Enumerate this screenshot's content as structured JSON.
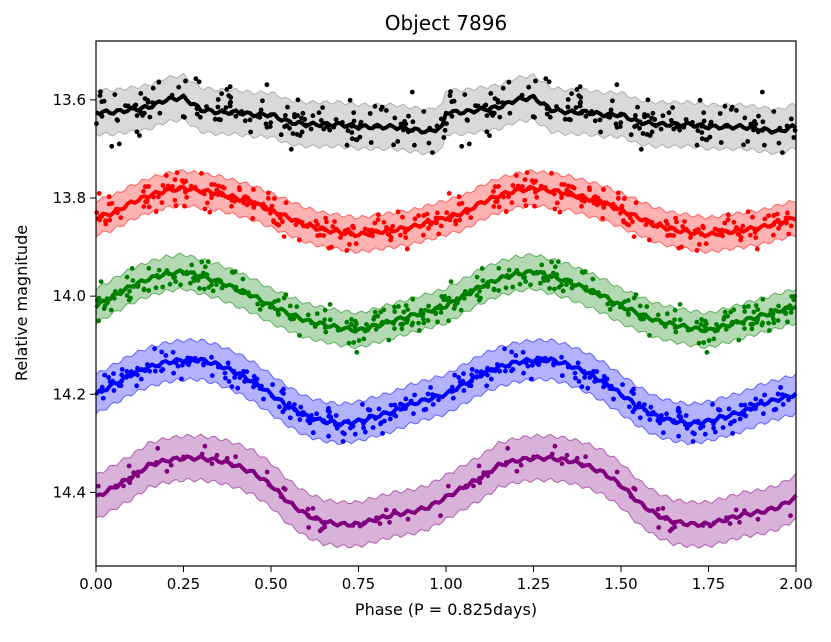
{
  "chart_data": {
    "type": "scatter",
    "title": "Object 7896",
    "xlabel": "Phase (P = 0.825days)",
    "ylabel": "Relative magnitude",
    "xlim": [
      0.0,
      2.0
    ],
    "ylim": [
      14.55,
      13.48
    ],
    "y_inverted": true,
    "grid": false,
    "legend": "none",
    "x_ticks": [
      {
        "value": 0.0,
        "label": "0.00"
      },
      {
        "value": 0.25,
        "label": "0.25"
      },
      {
        "value": 0.5,
        "label": "0.50"
      },
      {
        "value": 0.75,
        "label": "0.75"
      },
      {
        "value": 1.0,
        "label": "1.00"
      },
      {
        "value": 1.25,
        "label": "1.25"
      },
      {
        "value": 1.5,
        "label": "1.50"
      },
      {
        "value": 1.75,
        "label": "1.75"
      },
      {
        "value": 2.0,
        "label": "2.00"
      }
    ],
    "y_ticks": [
      {
        "value": 13.6,
        "label": "13.6"
      },
      {
        "value": 13.8,
        "label": "13.8"
      },
      {
        "value": 14.0,
        "label": "14.0"
      },
      {
        "value": 14.2,
        "label": "14.2"
      },
      {
        "value": 14.4,
        "label": "14.4"
      }
    ],
    "series": [
      {
        "color": "#000000",
        "band_color": "#808080",
        "points_per_cycle": 150,
        "scatter_sigma": 0.045,
        "band_halfwidth": 0.045,
        "model_phase": [
          0.0,
          0.05,
          0.1,
          0.15,
          0.2,
          0.25,
          0.3,
          0.35,
          0.4,
          0.45,
          0.5,
          0.55,
          0.6,
          0.65,
          0.7,
          0.75,
          0.8,
          0.85,
          0.9,
          0.95,
          0.99
        ],
        "model_mag": [
          13.625,
          13.625,
          13.62,
          13.615,
          13.6,
          13.595,
          13.62,
          13.625,
          13.625,
          13.63,
          13.63,
          13.645,
          13.65,
          13.65,
          13.65,
          13.655,
          13.655,
          13.655,
          13.66,
          13.665,
          13.655
        ]
      },
      {
        "color": "#ff0000",
        "band_color": "#ff0000",
        "points_per_cycle": 170,
        "scatter_sigma": 0.03,
        "band_halfwidth": 0.035,
        "model_phase": [
          0.0,
          0.05,
          0.1,
          0.15,
          0.2,
          0.25,
          0.3,
          0.35,
          0.4,
          0.45,
          0.5,
          0.55,
          0.6,
          0.65,
          0.7,
          0.75,
          0.8,
          0.85,
          0.9,
          0.95,
          1.0
        ],
        "model_mag": [
          13.84,
          13.83,
          13.81,
          13.795,
          13.785,
          13.78,
          13.785,
          13.79,
          13.8,
          13.81,
          13.825,
          13.84,
          13.855,
          13.865,
          13.87,
          13.875,
          13.87,
          13.865,
          13.86,
          13.85,
          13.84
        ]
      },
      {
        "color": "#008000",
        "band_color": "#008000",
        "points_per_cycle": 170,
        "scatter_sigma": 0.03,
        "band_halfwidth": 0.035,
        "model_phase": [
          0.0,
          0.05,
          0.1,
          0.15,
          0.2,
          0.25,
          0.3,
          0.35,
          0.4,
          0.45,
          0.5,
          0.55,
          0.6,
          0.65,
          0.7,
          0.75,
          0.8,
          0.85,
          0.9,
          0.95,
          1.0
        ],
        "model_mag": [
          14.02,
          14.0,
          13.98,
          13.965,
          13.955,
          13.95,
          13.96,
          13.97,
          13.985,
          14.0,
          14.02,
          14.035,
          14.05,
          14.058,
          14.065,
          14.07,
          14.06,
          14.05,
          14.04,
          14.03,
          14.02
        ]
      },
      {
        "color": "#0000ff",
        "band_color": "#0000ff",
        "points_per_cycle": 160,
        "scatter_sigma": 0.025,
        "band_halfwidth": 0.04,
        "model_phase": [
          0.0,
          0.05,
          0.1,
          0.15,
          0.2,
          0.25,
          0.3,
          0.35,
          0.4,
          0.45,
          0.5,
          0.55,
          0.6,
          0.65,
          0.7,
          0.75,
          0.8,
          0.85,
          0.9,
          0.95,
          1.0
        ],
        "model_mag": [
          14.2,
          14.18,
          14.16,
          14.145,
          14.135,
          14.13,
          14.13,
          14.14,
          14.155,
          14.175,
          14.2,
          14.225,
          14.245,
          14.255,
          14.26,
          14.255,
          14.245,
          14.235,
          14.22,
          14.21,
          14.2
        ]
      },
      {
        "color": "#800080",
        "band_color": "#800080",
        "points_per_cycle": 45,
        "scatter_sigma": 0.025,
        "band_halfwidth": 0.045,
        "model_phase": [
          0.0,
          0.05,
          0.1,
          0.15,
          0.2,
          0.25,
          0.3,
          0.35,
          0.4,
          0.45,
          0.5,
          0.55,
          0.6,
          0.65,
          0.7,
          0.75,
          0.8,
          0.85,
          0.9,
          0.95,
          1.0
        ],
        "model_mag": [
          14.41,
          14.39,
          14.37,
          14.345,
          14.335,
          14.33,
          14.33,
          14.335,
          14.345,
          14.36,
          14.385,
          14.42,
          14.445,
          14.46,
          14.465,
          14.465,
          14.455,
          14.445,
          14.44,
          14.43,
          14.41
        ]
      }
    ]
  }
}
